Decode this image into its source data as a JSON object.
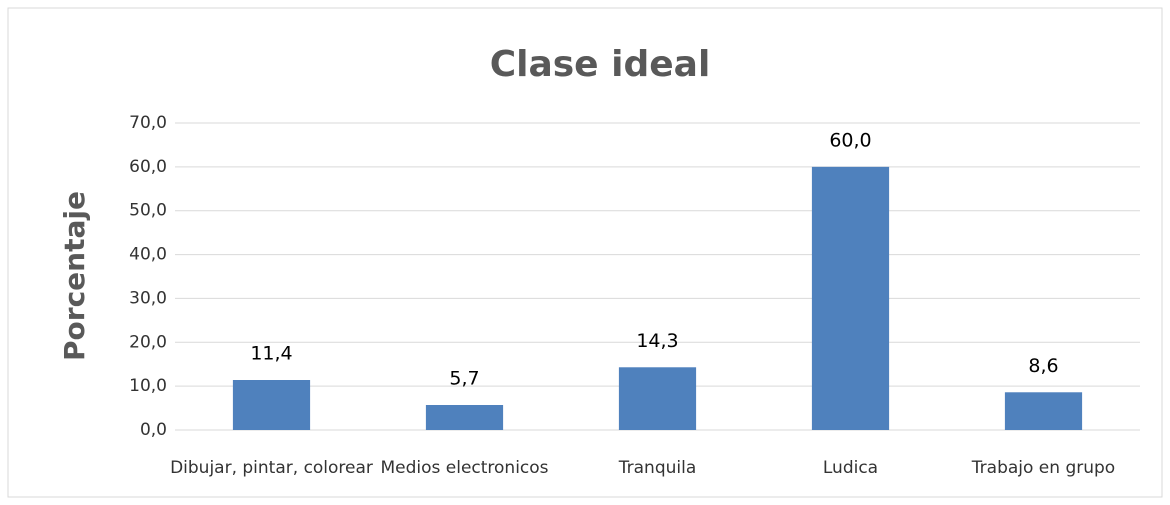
{
  "chart_data": {
    "type": "bar",
    "title": "Clase ideal",
    "y_label": "Porcentaje",
    "categories": [
      "Dibujar, pintar, colorear",
      "Medios electronicos",
      "Tranquila",
      "Ludica",
      "Trabajo en grupo"
    ],
    "values": [
      11.4,
      5.7,
      14.3,
      60.0,
      8.6
    ],
    "value_labels": [
      "11,4",
      "5,7",
      "14,3",
      "60,0",
      "8,6"
    ],
    "color": "#4f81bd",
    "ylim": [
      0,
      70
    ],
    "yticks": [
      {
        "value": 0,
        "label": "0,0"
      },
      {
        "value": 10,
        "label": "10,0"
      },
      {
        "value": 20,
        "label": "20,0"
      },
      {
        "value": 30,
        "label": "30,0"
      },
      {
        "value": 40,
        "label": "40,0"
      },
      {
        "value": 50,
        "label": "50,0"
      },
      {
        "value": 60,
        "label": "60,0"
      },
      {
        "value": 70,
        "label": "70,0"
      }
    ],
    "grid": true
  }
}
